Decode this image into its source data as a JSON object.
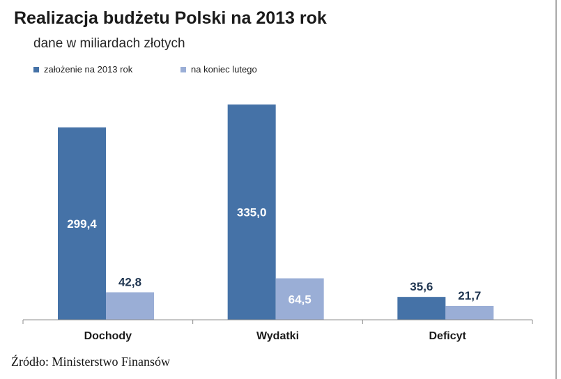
{
  "title": "Realizacja budżetu Polski na 2013 rok",
  "subtitle": "dane w miliardach złotych",
  "source": "Źródło: Ministerstwo Finansów",
  "chart_data": {
    "type": "bar",
    "title": "Realizacja budżetu Polski na 2013 rok",
    "subtitle": "dane w miliardach złotych",
    "xlabel": "",
    "ylabel": "",
    "categories": [
      "Dochody",
      "Wydatki",
      "Deficyt"
    ],
    "series": [
      {
        "name": "założenie na 2013 rok",
        "values": [
          299.4,
          335.0,
          35.6
        ],
        "labels": [
          "299,4",
          "335,0",
          "35,6"
        ],
        "color": "#4572a7"
      },
      {
        "name": "na koniec lutego",
        "values": [
          42.8,
          64.5,
          21.7
        ],
        "labels": [
          "42,8",
          "64,5",
          "21,7"
        ],
        "color": "#9aaed6"
      }
    ],
    "ylim": [
      0,
      335
    ],
    "grid": false,
    "legend_position": "top-left"
  }
}
